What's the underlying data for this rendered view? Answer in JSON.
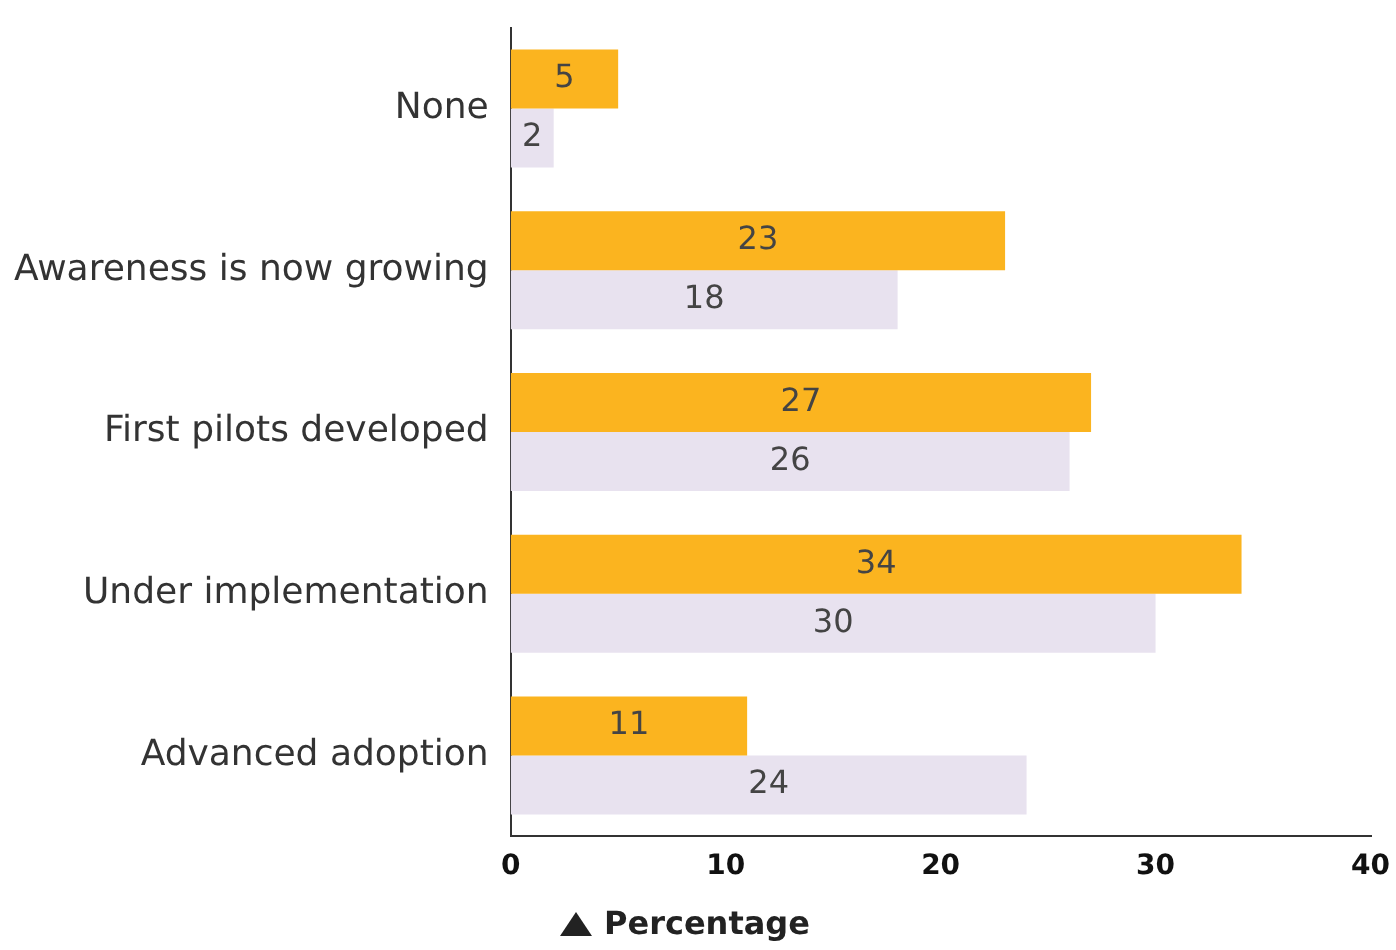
{
  "chart_data": {
    "type": "bar",
    "orientation": "horizontal",
    "xlabel": "Percentage",
    "categories": [
      "None",
      "Awareness is now growing",
      "First pilots developed",
      "Under implementation",
      "Advanced adoption"
    ],
    "series": [
      {
        "color": "#fbb41f",
        "values": [
          5,
          23,
          27,
          34,
          11
        ]
      },
      {
        "color": "#e8e2ef",
        "values": [
          2,
          18,
          26,
          30,
          24
        ]
      }
    ],
    "xlim": [
      0,
      40
    ],
    "xticks": [
      0,
      10,
      20,
      30,
      40
    ],
    "grid": false,
    "legend": false,
    "data_labels": true
  }
}
